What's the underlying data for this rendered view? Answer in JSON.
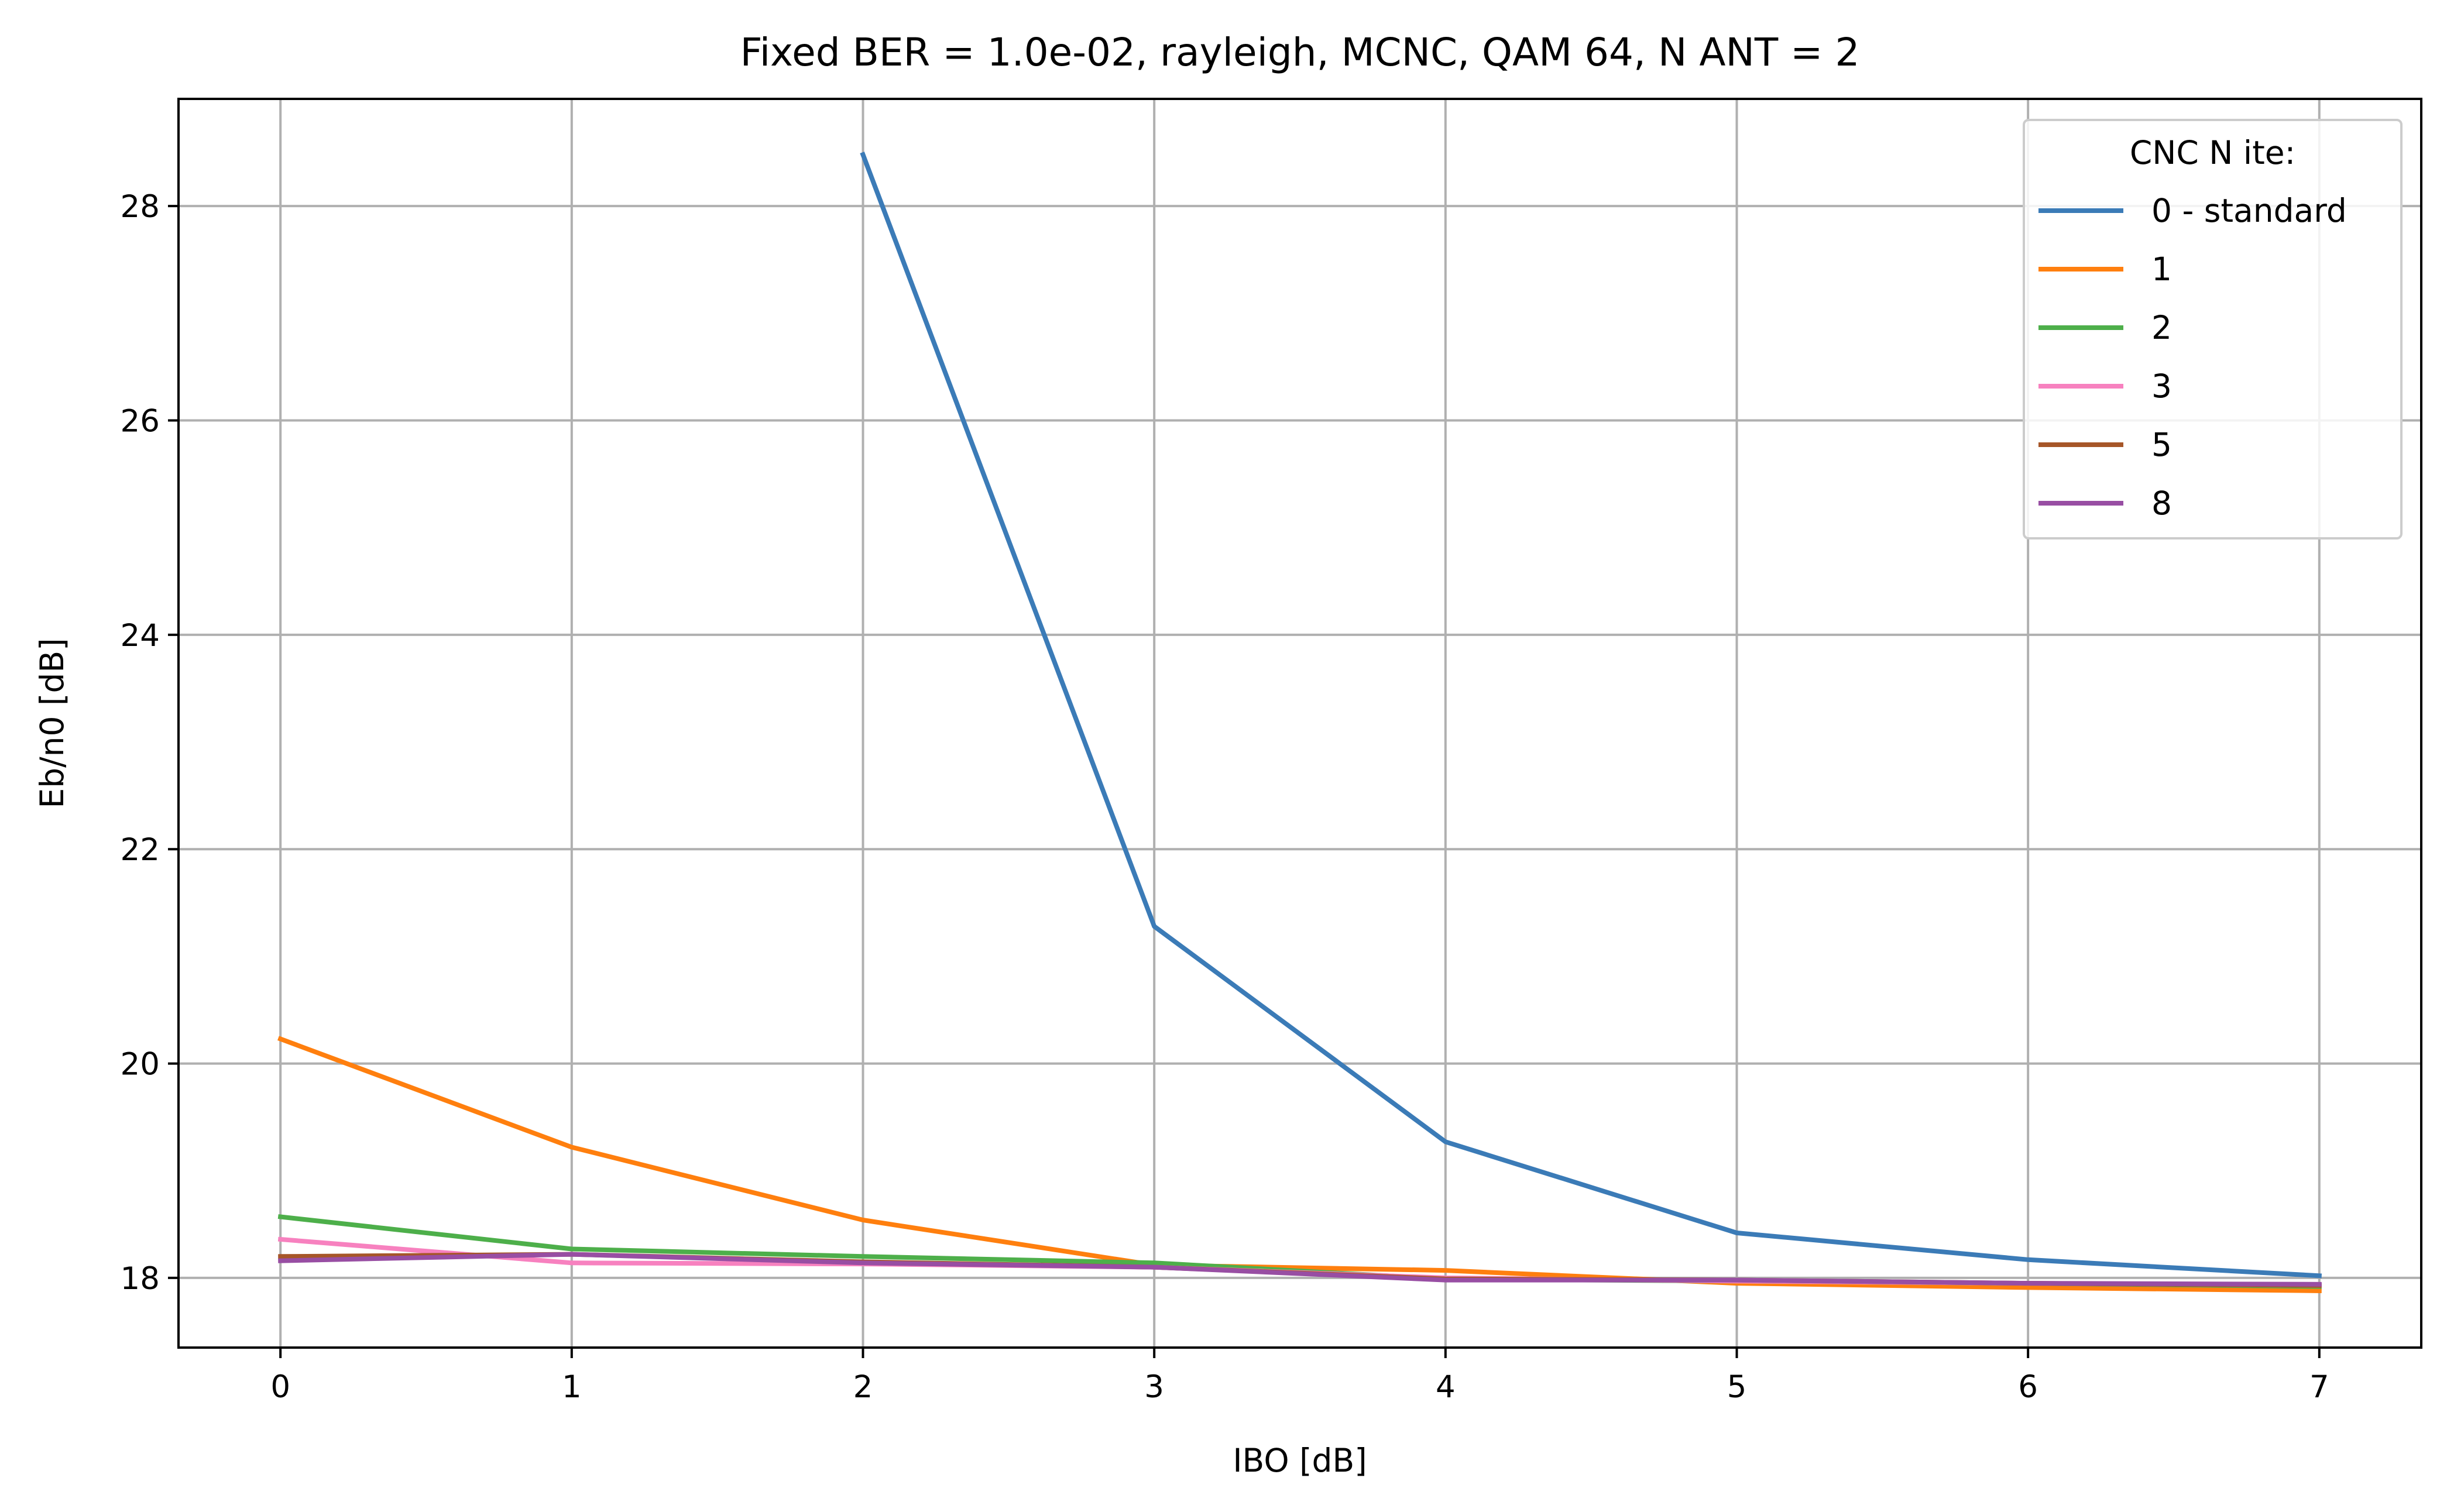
{
  "chart_data": {
    "type": "line",
    "title": "Fixed BER = 1.0e-02, rayleigh, MCNC, QAM 64, N ANT = 2",
    "xlabel": "IBO [dB]",
    "ylabel": "Eb/n0 [dB]",
    "xlim": [
      -0.35,
      7.35
    ],
    "ylim": [
      17.35,
      29.0
    ],
    "x_ticks": [
      0,
      1,
      2,
      3,
      4,
      5,
      6,
      7
    ],
    "y_ticks": [
      18,
      20,
      22,
      24,
      26,
      28
    ],
    "grid": true,
    "legend": {
      "title": "CNC N ite:",
      "position": "top-right"
    },
    "series": [
      {
        "name": "0 - standard",
        "color": "#3b7bb7",
        "x": [
          2,
          3,
          4,
          5,
          6,
          7
        ],
        "y": [
          28.48,
          21.28,
          19.27,
          18.42,
          18.17,
          18.02
        ]
      },
      {
        "name": "1",
        "color": "#ff7f0e",
        "x": [
          0,
          1,
          2,
          3,
          4,
          5,
          6,
          7
        ],
        "y": [
          20.23,
          19.22,
          18.54,
          18.12,
          18.07,
          17.95,
          17.91,
          17.88
        ]
      },
      {
        "name": "2",
        "color": "#4daf4a",
        "x": [
          0,
          1,
          2,
          3,
          4,
          5,
          6,
          7
        ],
        "y": [
          18.57,
          18.27,
          18.2,
          18.14,
          17.99,
          17.97,
          17.95,
          17.92
        ]
      },
      {
        "name": "3",
        "color": "#f781bf",
        "x": [
          0,
          1,
          2,
          3,
          4,
          5,
          6,
          7
        ],
        "y": [
          18.36,
          18.14,
          18.13,
          18.1,
          18.0,
          17.97,
          17.95,
          17.93
        ]
      },
      {
        "name": "5",
        "color": "#a65628",
        "x": [
          0,
          1,
          2,
          3,
          4,
          5,
          6,
          7
        ],
        "y": [
          18.2,
          18.22,
          18.15,
          18.1,
          17.99,
          17.98,
          17.95,
          17.93
        ]
      },
      {
        "name": "8",
        "color": "#984ea3",
        "x": [
          0,
          1,
          2,
          3,
          4,
          5,
          6,
          7
        ],
        "y": [
          18.16,
          18.22,
          18.14,
          18.1,
          17.98,
          17.98,
          17.95,
          17.94
        ]
      }
    ]
  }
}
